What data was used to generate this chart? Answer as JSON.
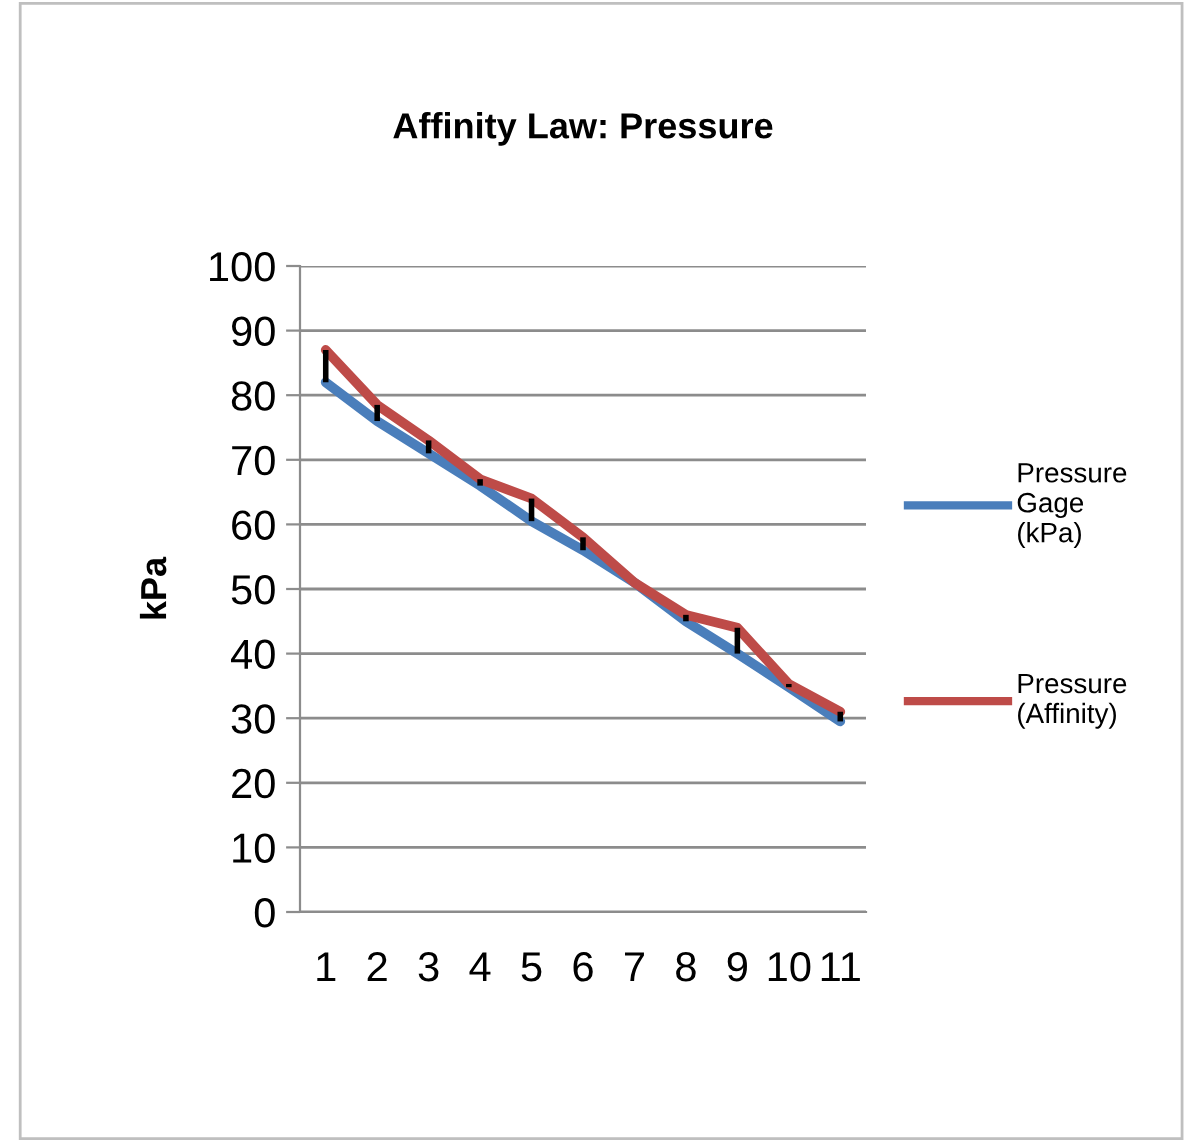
{
  "chart_data": {
    "type": "line",
    "title": "Affinity Law: Pressure",
    "ylabel": "kPa",
    "categories": [
      "1",
      "2",
      "3",
      "4",
      "5",
      "6",
      "7",
      "8",
      "9",
      "10",
      "11"
    ],
    "series": [
      {
        "name": "Pressure Gage (kPa)",
        "color": "#4a7ebb",
        "values": [
          82,
          76,
          71,
          66,
          60.5,
          56,
          51,
          45,
          40,
          34.8,
          29.5
        ],
        "errors": [
          [
            82,
            87
          ],
          [
            76,
            78.5
          ],
          [
            71,
            73
          ],
          [
            66,
            67
          ],
          [
            60.5,
            64
          ],
          [
            56,
            58
          ],
          null,
          [
            45,
            46
          ],
          [
            40,
            44
          ],
          [
            34.8,
            35.3
          ],
          [
            29.5,
            31
          ]
        ]
      },
      {
        "name": "Pressure (Affinity)",
        "color": "#be4b48",
        "values": [
          87,
          78.5,
          73,
          67,
          64,
          58,
          51,
          46,
          44,
          35.3,
          31
        ]
      }
    ],
    "ylim": [
      0,
      100
    ],
    "yticks": [
      0,
      10,
      20,
      30,
      40,
      50,
      60,
      70,
      80,
      90,
      100
    ],
    "grid": "y",
    "legend": "right",
    "marker": "none",
    "line_style": "solid"
  }
}
